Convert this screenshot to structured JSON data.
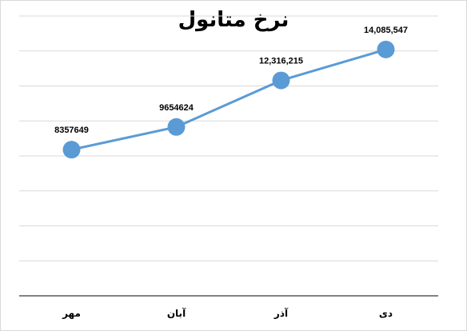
{
  "chart_data": {
    "type": "line",
    "title": "نرخ متانول",
    "categories": [
      "مهر",
      "آبان",
      "آذر",
      "دی"
    ],
    "series": [
      {
        "values": [
          8357649,
          9654624,
          12316215,
          14085547
        ],
        "data_labels": [
          "8357649",
          "9654624",
          "12,316,215",
          "14,085,547"
        ]
      }
    ],
    "ylim": [
      0,
      16000000
    ],
    "y_gridlines": true,
    "y_axis_labels_visible": false,
    "legend": "none",
    "colors": {
      "line": "#5b9bd5",
      "marker": "#5b9bd5",
      "grid": "#d9d9d9",
      "axis": "#595959"
    }
  }
}
